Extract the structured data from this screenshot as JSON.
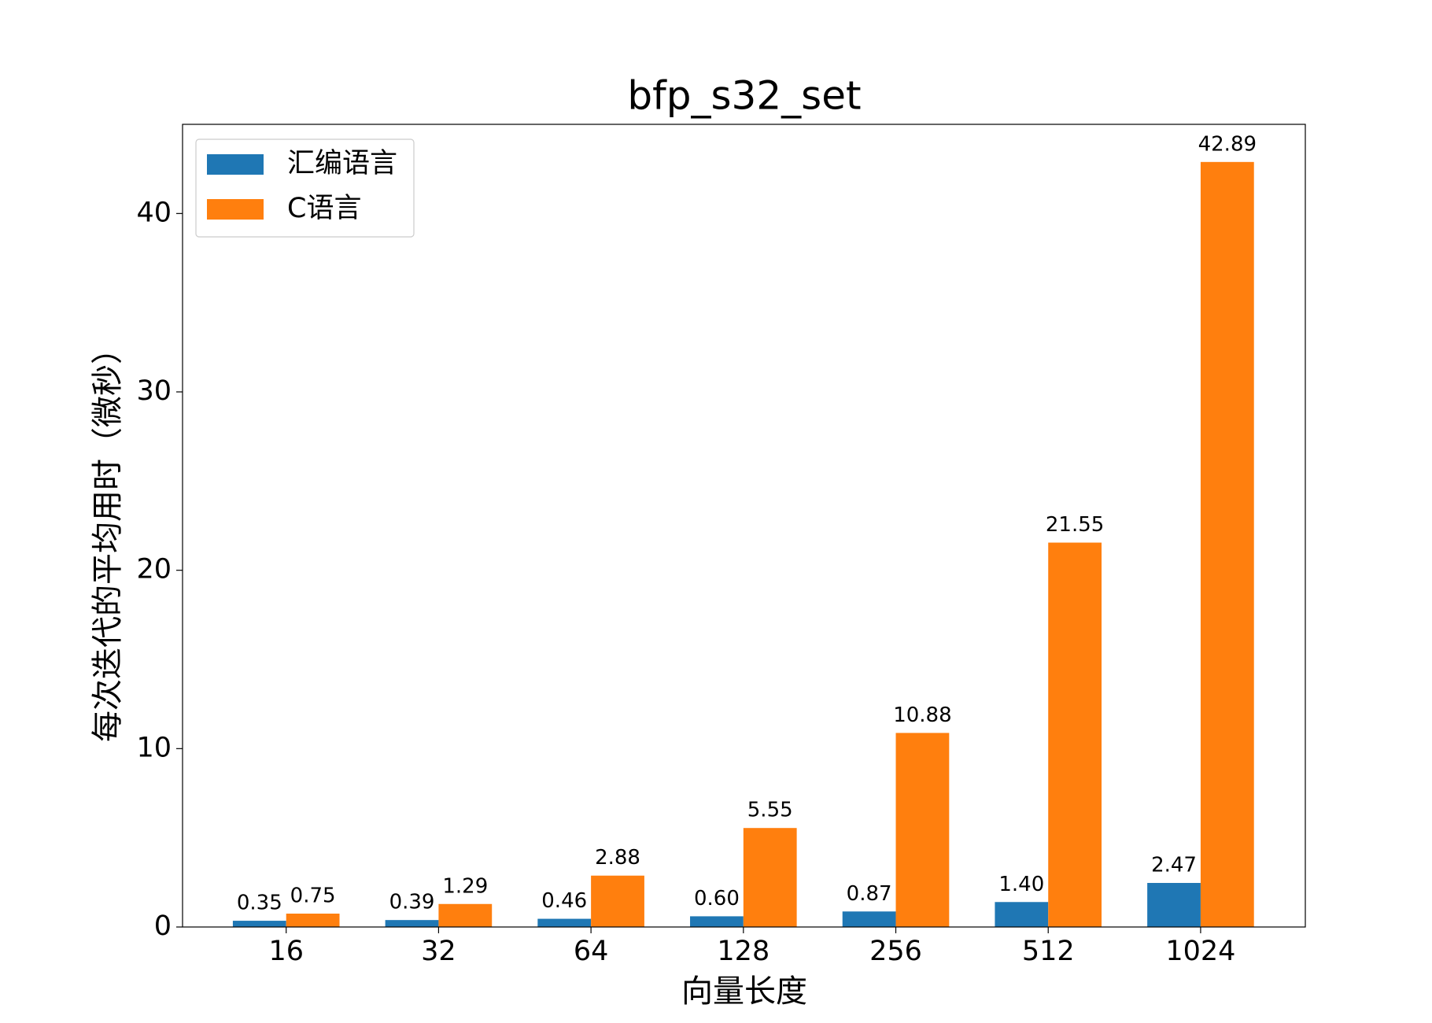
{
  "chart_data": {
    "type": "bar",
    "title": "bfp_s32_set",
    "x_label": "向量长度",
    "y_label": "每次迭代的平均用时（微秒）",
    "categories": [
      "16",
      "32",
      "64",
      "128",
      "256",
      "512",
      "1024"
    ],
    "series": [
      {
        "name": "汇编语言",
        "color": "#1f77b4",
        "values": [
          0.35,
          0.39,
          0.46,
          0.6,
          0.87,
          1.4,
          2.47
        ],
        "value_labels": [
          "0.35",
          "0.39",
          "0.46",
          "0.60",
          "0.87",
          "1.40",
          "2.47"
        ]
      },
      {
        "name": "C语言",
        "color": "#ff7f0e",
        "values": [
          0.75,
          1.29,
          2.88,
          5.55,
          10.88,
          21.55,
          42.89
        ],
        "value_labels": [
          "0.75",
          "1.29",
          "2.88",
          "5.55",
          "10.88",
          "21.55",
          "42.89"
        ]
      }
    ],
    "ylim": [
      0,
      45
    ],
    "yticks": [
      0,
      10,
      20,
      30,
      40
    ],
    "legend": "upper left"
  }
}
